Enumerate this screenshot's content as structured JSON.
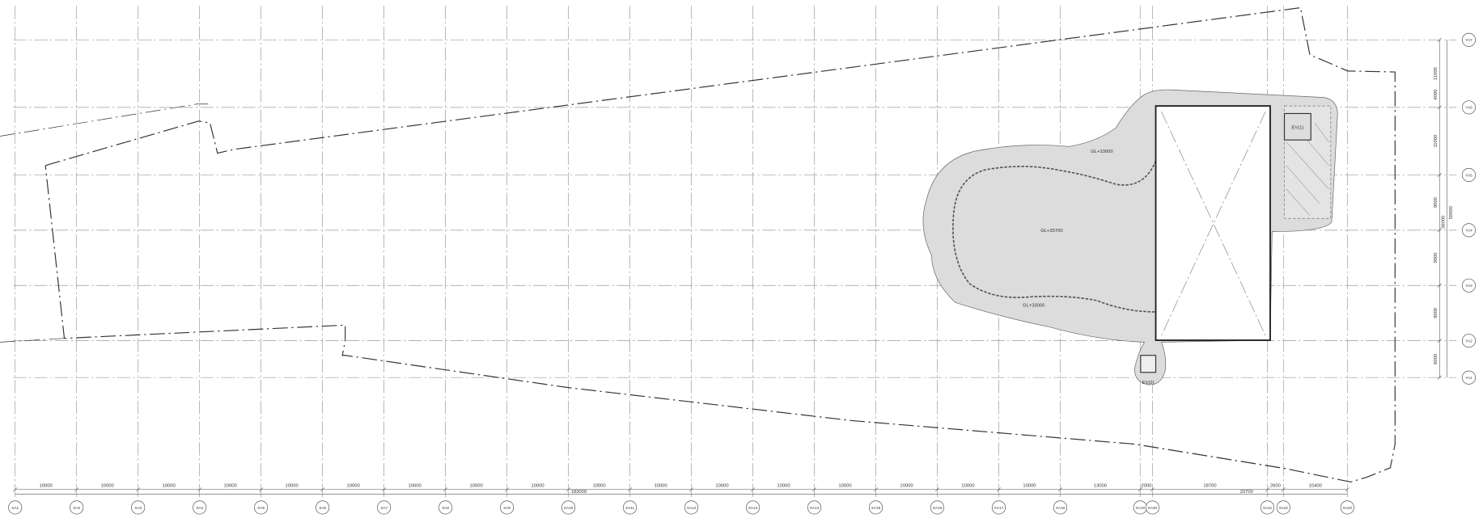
{
  "x_axis": {
    "grid_labels": [
      "XA1",
      "XA2",
      "XA3",
      "XA4",
      "XA5",
      "XA6",
      "XA7",
      "XA8",
      "XA9",
      "XA10",
      "XA11",
      "XA12",
      "XA13",
      "XA14",
      "XA15",
      "XA16",
      "XA17",
      "XA18",
      "XA19",
      "XA20",
      "XA21",
      "XA22",
      "XA23"
    ],
    "spans": [
      10000,
      10000,
      10000,
      10000,
      10000,
      10000,
      10000,
      10000,
      10000,
      10000,
      10000,
      10000,
      10000,
      10000,
      10000,
      10000,
      10000,
      13000,
      2000,
      18700,
      2600,
      10400
    ],
    "total_left": 183000,
    "total_right": 33700
  },
  "y_axis": {
    "grid_labels": [
      "YA7",
      "YA6",
      "YA5",
      "YA4",
      "YA3",
      "YA2",
      "YA1"
    ],
    "spans": [
      11000,
      11000,
      9000,
      9000,
      9000,
      6000
    ],
    "extra_dims": [
      4000,
      55000,
      36000
    ]
  },
  "labels": {
    "level_top": "GL+33000",
    "level_middle": "GL+35700",
    "level_bottom": "GL+33000",
    "elevator_1": "EV(1)",
    "elevator_2": "EV(2)"
  }
}
